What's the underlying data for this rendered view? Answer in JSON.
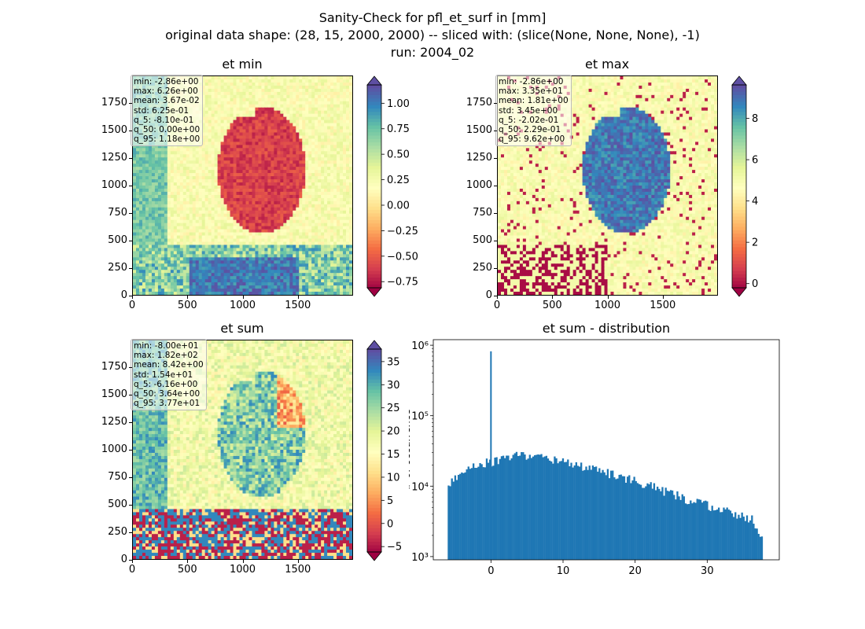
{
  "figure": {
    "title_line1": "Sanity-Check for pfl_et_surf in [mm]",
    "title_line2": "original data shape: (28, 15, 2000, 2000) -- sliced with: (slice(None, None, None), -1)",
    "title_line3": "run: 2004_02"
  },
  "panels": {
    "et_min": {
      "title": "et min",
      "stats": [
        "min: -2.86e+00",
        "max: 6.26e+00",
        "mean: 3.67e-02",
        "std: 6.25e-01",
        "q_5: -8.10e-01",
        "q_50: 0.00e+00",
        "q_95: 1.18e+00"
      ],
      "x_ticks": [
        "0",
        "500",
        "1000",
        "1500"
      ],
      "y_ticks": [
        "0",
        "250",
        "500",
        "750",
        "1000",
        "1250",
        "1500",
        "1750"
      ],
      "cbar_ticks": [
        "1.00",
        "0.75",
        "0.50",
        "0.25",
        "0.00",
        "−0.25",
        "−0.50",
        "−0.75"
      ],
      "cbar_values": [
        1.0,
        0.75,
        0.5,
        0.25,
        0.0,
        -0.25,
        -0.5,
        -0.75
      ],
      "vmin": -0.81,
      "vmax": 1.18,
      "cmap": "Spectral"
    },
    "et_max": {
      "title": "et max",
      "stats": [
        "min: -2.86e+00",
        "max: 3.35e+01",
        "mean: 1.81e+00",
        "std: 3.45e+00",
        "q_5: -2.02e-01",
        "q_50: 2.29e-01",
        "q_95: 9.62e+00"
      ],
      "x_ticks": [
        "0",
        "500",
        "1000",
        "1500"
      ],
      "y_ticks": [
        "0",
        "250",
        "500",
        "750",
        "1000",
        "1250",
        "1500",
        "1750"
      ],
      "cbar_ticks": [
        "8",
        "6",
        "4",
        "2",
        "0"
      ],
      "cbar_values": [
        8,
        6,
        4,
        2,
        0
      ],
      "vmin": -0.202,
      "vmax": 9.62,
      "cmap": "Spectral"
    },
    "et_sum": {
      "title": "et sum",
      "stats": [
        "min: -8.00e+01",
        "max: 1.82e+02",
        "mean: 8.42e+00",
        "std: 1.54e+01",
        "q_5: -6.16e+00",
        "q_50: 3.64e+00",
        "q_95: 3.77e+01"
      ],
      "x_ticks": [
        "0",
        "500",
        "1000",
        "1500"
      ],
      "y_ticks": [
        "0",
        "250",
        "500",
        "750",
        "1000",
        "1250",
        "1500",
        "1750"
      ],
      "cbar_ticks": [
        "35",
        "30",
        "25",
        "20",
        "15",
        "10",
        "5",
        "0",
        "−5"
      ],
      "cbar_values": [
        35,
        30,
        25,
        20,
        15,
        10,
        5,
        0,
        -5
      ],
      "vmin": -6.16,
      "vmax": 37.7,
      "cmap": "Spectral"
    }
  },
  "chart_data": {
    "type": "bar",
    "title": "et sum - distribution",
    "xlabel": "",
    "ylabel": "# of occurrence",
    "yscale": "log",
    "xlim": [
      -8,
      40
    ],
    "ylim": [
      900,
      1200000
    ],
    "x_ticks": [
      "0",
      "10",
      "20",
      "30"
    ],
    "x_tick_values": [
      0,
      10,
      20,
      30
    ],
    "y_ticks": [
      "10³",
      "10⁴",
      "10⁵",
      "10⁶"
    ],
    "y_tick_values": [
      1000,
      10000,
      100000,
      1000000
    ],
    "bar_color": "#1f77b4",
    "spike": {
      "x": 0,
      "count": 820000
    },
    "bins_x": [
      -6,
      -4,
      -2,
      0,
      2,
      4,
      6,
      8,
      10,
      12,
      14,
      16,
      18,
      20,
      22,
      24,
      26,
      28,
      30,
      32,
      34,
      36,
      37.5
    ],
    "bins_count": [
      10000,
      16500,
      21000,
      22000,
      25000,
      28500,
      26500,
      24500,
      22000,
      19500,
      17500,
      15500,
      13500,
      12000,
      10000,
      8500,
      7200,
      6000,
      5300,
      4600,
      4000,
      3500,
      1700
    ]
  }
}
